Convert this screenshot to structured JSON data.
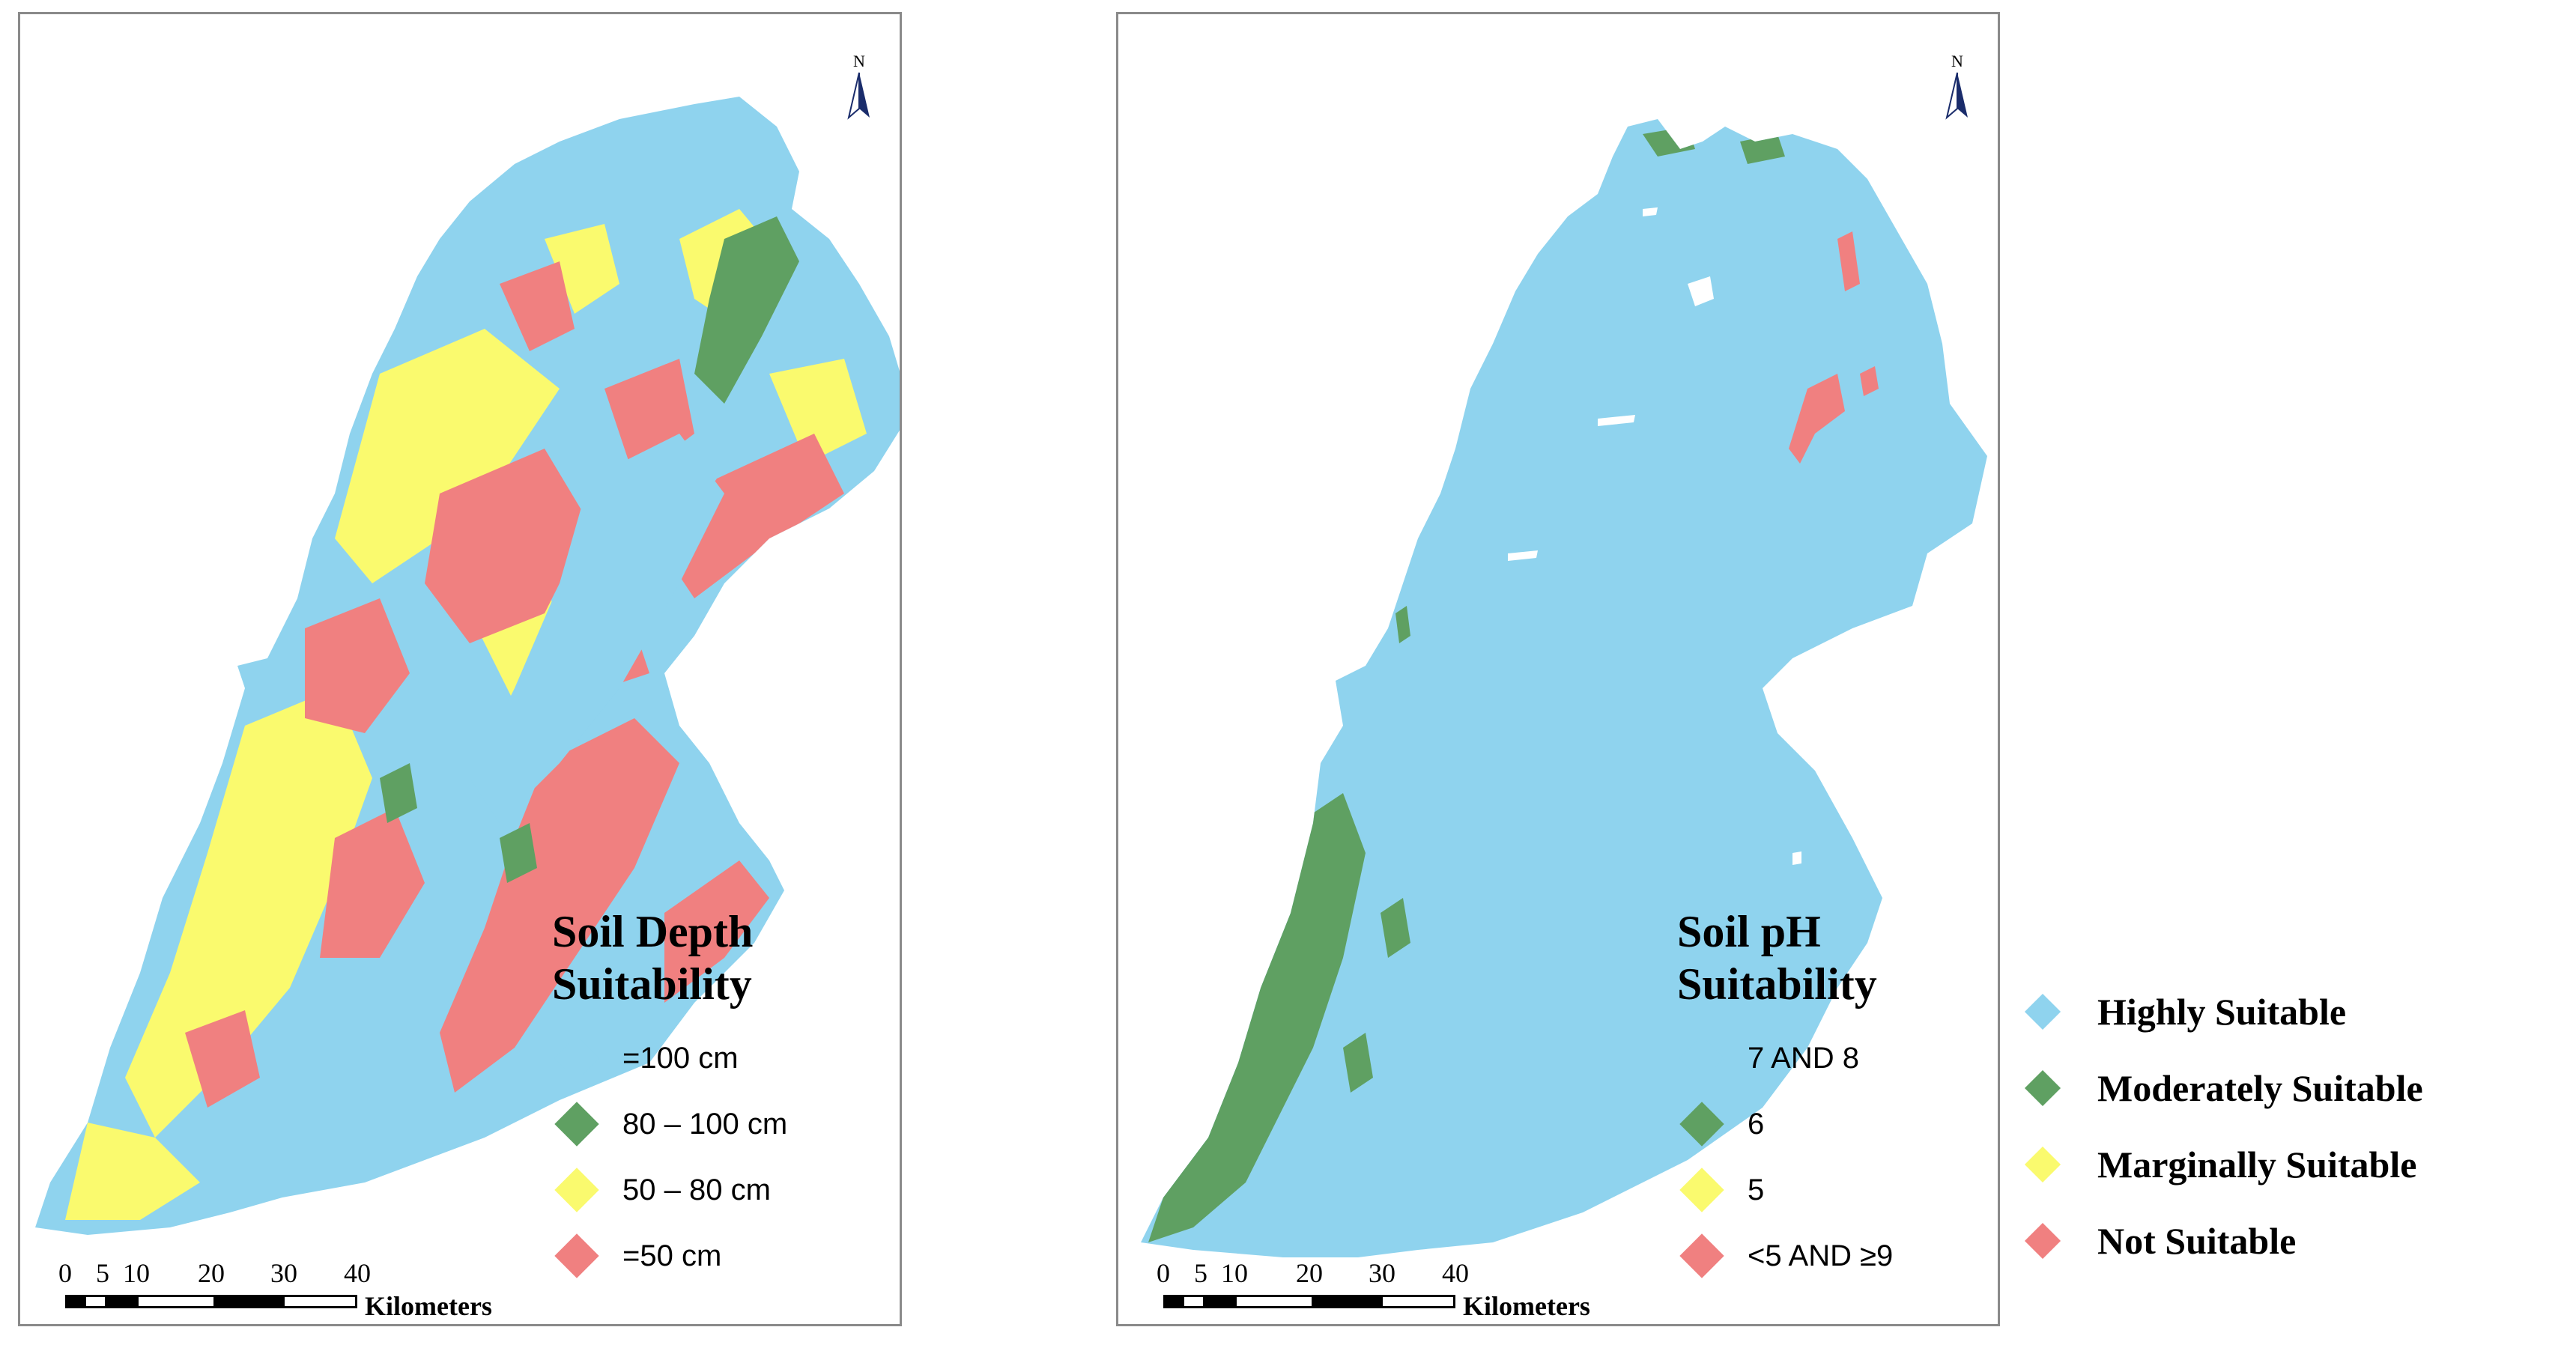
{
  "colors": {
    "blue": "#8fd3ee",
    "green": "#5fa062",
    "yellow": "#fafa6e",
    "red": "#f08080",
    "border": "#8a8a8a"
  },
  "north_arrow": {
    "label": "N"
  },
  "maps": [
    {
      "legend": {
        "title_line1": "Soil Depth",
        "title_line2": "Suitability",
        "items": [
          {
            "label": "=100 cm",
            "color": "#8fd3ee"
          },
          {
            "label": "80 – 100 cm",
            "color": "#5fa062"
          },
          {
            "label": "50 – 80 cm",
            "color": "#fafa6e"
          },
          {
            "label": "=50 cm",
            "color": "#f08080"
          }
        ]
      },
      "scale": {
        "ticks": [
          "0",
          "5",
          "10",
          "20",
          "30",
          "40"
        ],
        "unit": "Kilometers"
      }
    },
    {
      "legend": {
        "title_line1": "Soil pH",
        "title_line2": "Suitability",
        "items": [
          {
            "label": "7 AND 8",
            "color": "#8fd3ee"
          },
          {
            "label": "6",
            "color": "#5fa062"
          },
          {
            "label": "5",
            "color": "#fafa6e"
          },
          {
            "label": "<5 AND ≥9",
            "color": "#f08080"
          }
        ]
      },
      "scale": {
        "ticks": [
          "0",
          "5",
          "10",
          "20",
          "30",
          "40"
        ],
        "unit": "Kilometers"
      }
    }
  ],
  "common_legend": {
    "items": [
      {
        "label": "Highly Suitable",
        "color": "#8fd3ee"
      },
      {
        "label": "Moderately Suitable",
        "color": "#5fa062"
      },
      {
        "label": "Marginally Suitable",
        "color": "#fafa6e"
      },
      {
        "label": "Not Suitable",
        "color": "#f08080"
      }
    ]
  }
}
